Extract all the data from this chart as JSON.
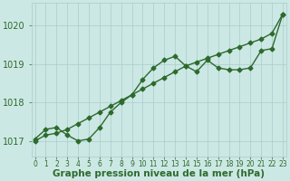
{
  "xlabel": "Graphe pression niveau de la mer (hPa)",
  "x_ticks": [
    0,
    1,
    2,
    3,
    4,
    5,
    6,
    7,
    8,
    9,
    10,
    11,
    12,
    13,
    14,
    15,
    16,
    17,
    18,
    19,
    20,
    21,
    22,
    23
  ],
  "x_tick_labels": [
    "0",
    "1",
    "2",
    "3",
    "4",
    "5",
    "6",
    "7",
    "8",
    "9",
    "10",
    "11",
    "12",
    "13",
    "14",
    "15",
    "16",
    "17",
    "18",
    "19",
    "20",
    "21",
    "22",
    "23"
  ],
  "ylim": [
    1016.6,
    1020.6
  ],
  "xlim": [
    -0.3,
    23.3
  ],
  "yticks": [
    1017,
    1018,
    1019,
    1020
  ],
  "line1_x": [
    0,
    1,
    2,
    3,
    4,
    5,
    6,
    7,
    8,
    9,
    10,
    11,
    12,
    13,
    14,
    15,
    16,
    17,
    18,
    19,
    20,
    21,
    22,
    23
  ],
  "line1_y": [
    1017.05,
    1017.3,
    1017.35,
    1017.15,
    1017.0,
    1017.05,
    1017.35,
    1017.75,
    1018.0,
    1018.2,
    1018.6,
    1018.9,
    1019.1,
    1019.2,
    1018.95,
    1018.8,
    1019.1,
    1018.9,
    1018.85,
    1018.85,
    1018.9,
    1019.35,
    1019.4,
    1020.3
  ],
  "line2_x": [
    0,
    1,
    2,
    3,
    4,
    5,
    6,
    7,
    8,
    9,
    10,
    11,
    12,
    13,
    14,
    15,
    16,
    17,
    18,
    19,
    20,
    21,
    22,
    23
  ],
  "line2_y": [
    1017.0,
    1017.15,
    1017.2,
    1017.3,
    1017.45,
    1017.6,
    1017.75,
    1017.9,
    1018.05,
    1018.2,
    1018.35,
    1018.5,
    1018.65,
    1018.8,
    1018.95,
    1019.05,
    1019.15,
    1019.25,
    1019.35,
    1019.45,
    1019.55,
    1019.65,
    1019.8,
    1020.3
  ],
  "bg_color": "#cce8e4",
  "line_color": "#2d6a2d",
  "grid_color": "#a8cccc",
  "label_color": "#2d6a2d",
  "marker": "D",
  "marker_size": 2.5,
  "line_width": 1.0,
  "xlabel_fontsize": 7.5,
  "xlabel_bold": true,
  "ytick_fontsize": 7,
  "xtick_fontsize": 5.5
}
